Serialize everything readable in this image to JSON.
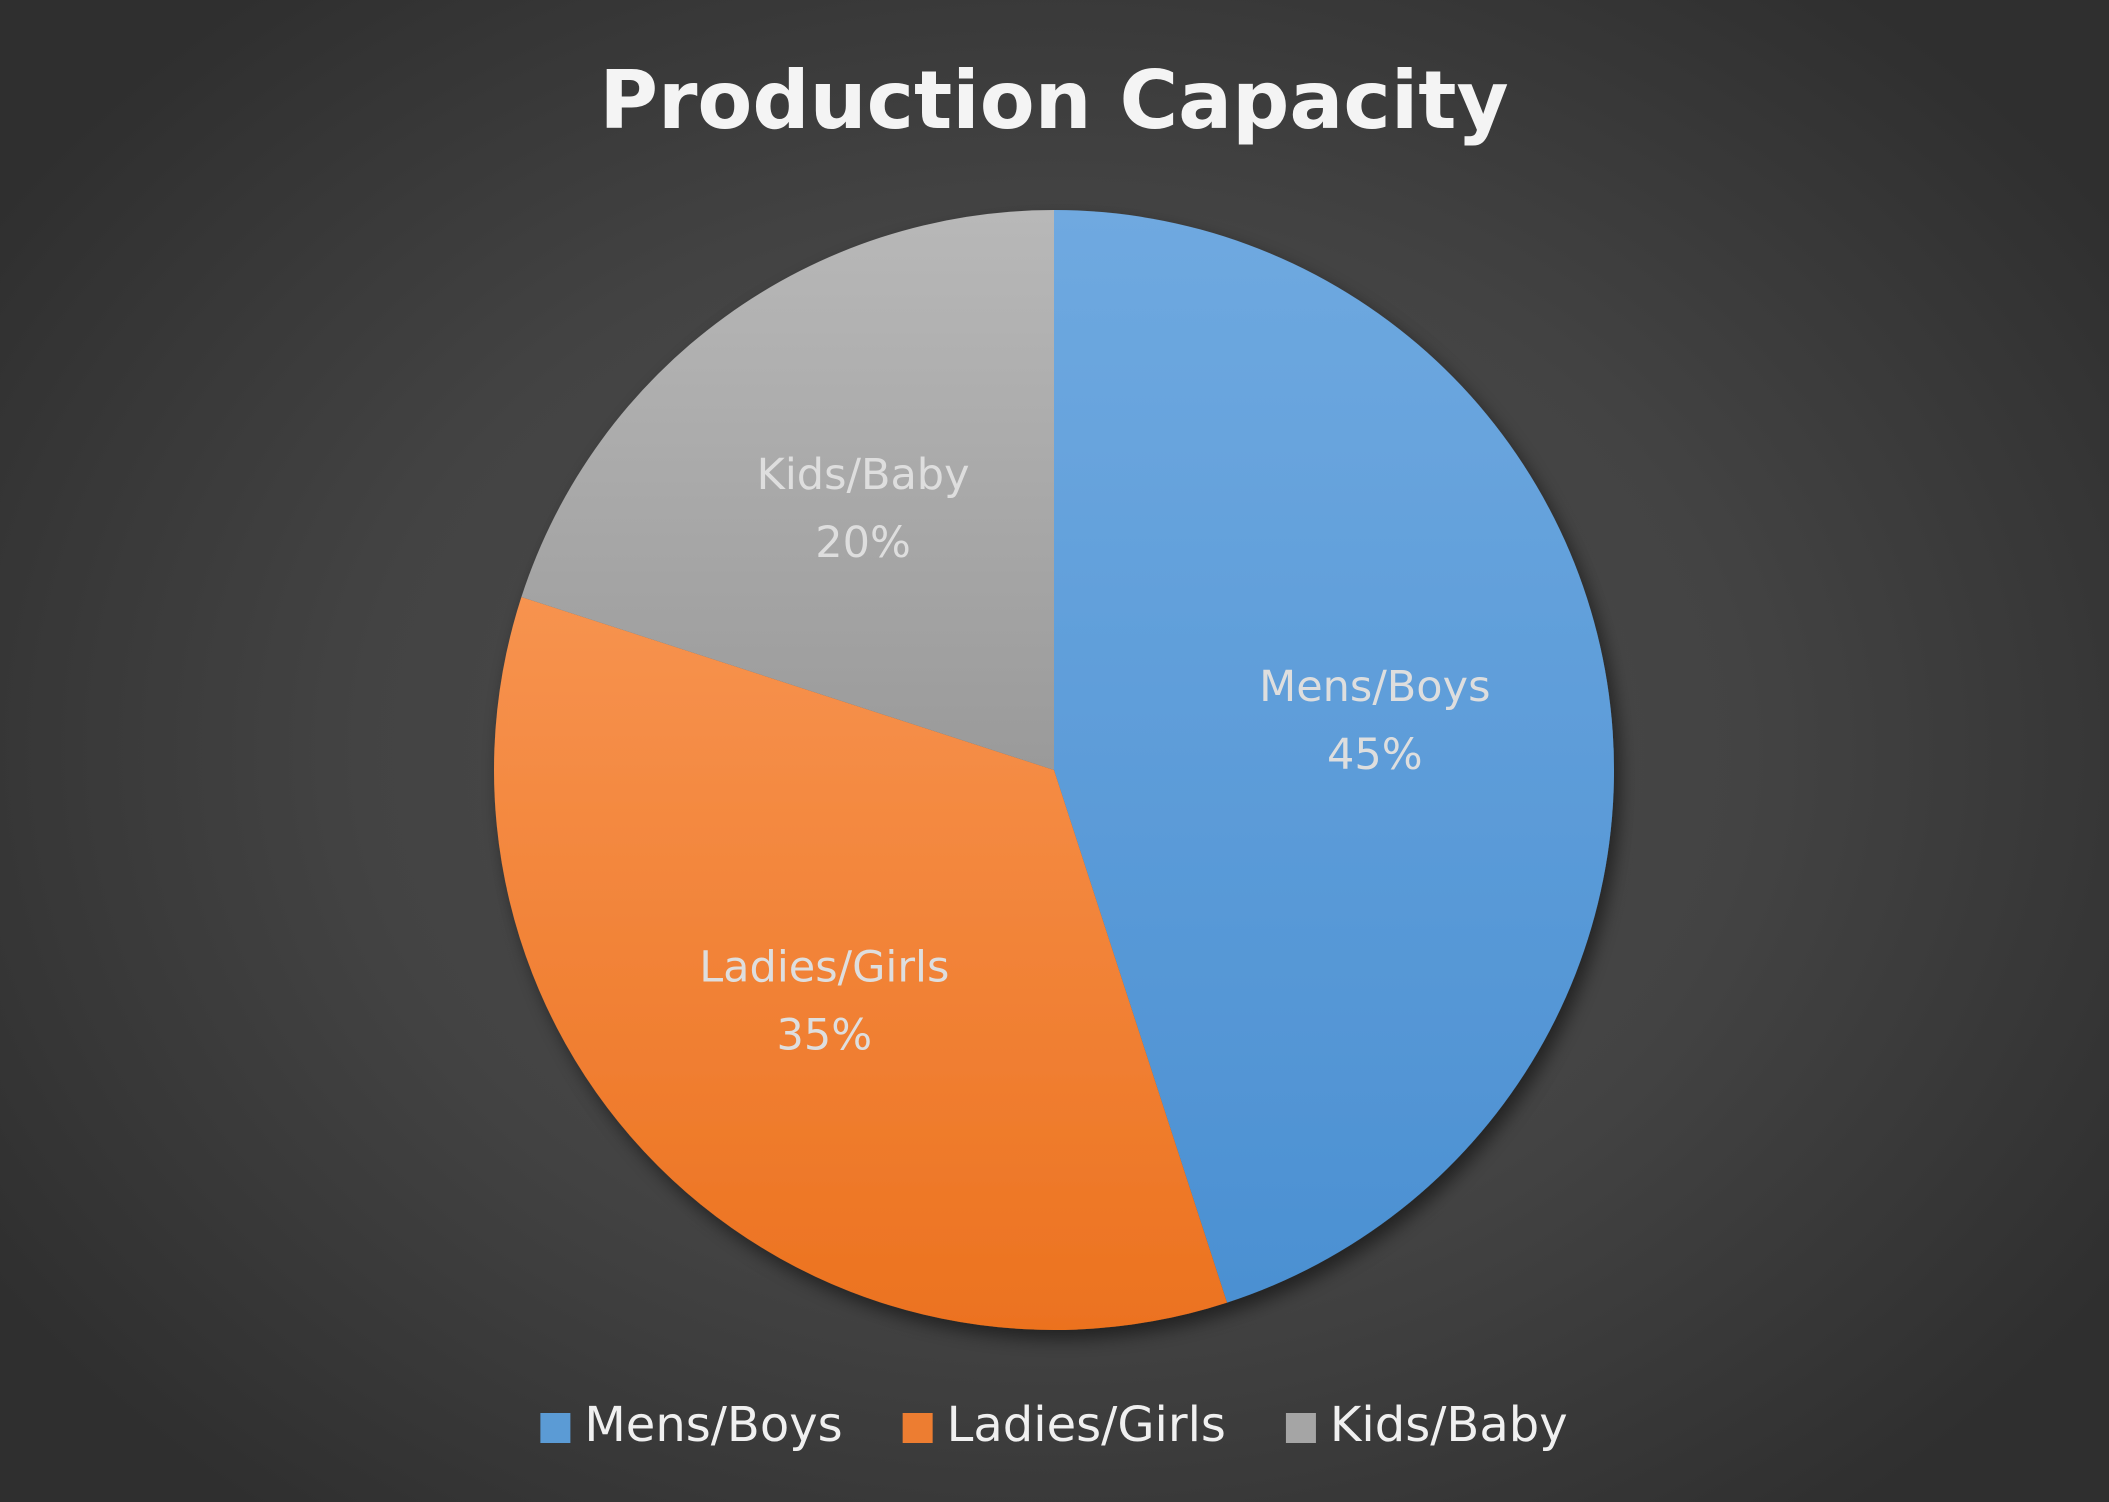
{
  "chart_data": {
    "type": "pie",
    "title": "Production Capacity",
    "categories": [
      "Mens/Boys",
      "Ladies/Girls",
      "Kids/Baby"
    ],
    "values": [
      45,
      35,
      20
    ],
    "data_labels": [
      "45%",
      "35%",
      "20%"
    ],
    "colors": [
      "#5b9bd5",
      "#ed7d31",
      "#a5a5a5"
    ],
    "start_angle_deg": 0,
    "direction": "clockwise",
    "legend": {
      "placement": "bottom",
      "entries": [
        "Mens/Boys",
        "Ladies/Girls",
        "Kids/Baby"
      ]
    }
  }
}
